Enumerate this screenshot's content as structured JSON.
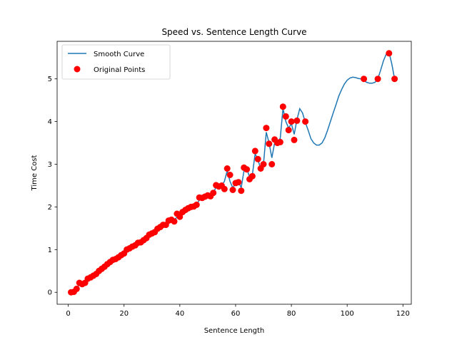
{
  "chart_data": {
    "type": "line",
    "title": "Speed vs. Sentence Length Curve",
    "xlabel": "Sentence Length",
    "ylabel": "Time Cost",
    "xlim": [
      -4,
      123
    ],
    "ylim": [
      -0.28,
      5.88
    ],
    "x_ticks": [
      0,
      20,
      40,
      60,
      80,
      100,
      120
    ],
    "y_ticks": [
      0,
      1,
      2,
      3,
      4,
      5
    ],
    "grid": false,
    "legend_position": "top-left",
    "series": [
      {
        "name": "Smooth Curve",
        "kind": "line",
        "color": "#1f77b4",
        "points": [
          [
            1,
            0.0
          ],
          [
            2,
            0.02
          ],
          [
            3,
            0.1
          ],
          [
            4,
            0.18
          ],
          [
            5,
            0.2
          ],
          [
            6,
            0.24
          ],
          [
            7,
            0.3
          ],
          [
            8,
            0.36
          ],
          [
            9,
            0.4
          ],
          [
            10,
            0.44
          ],
          [
            11,
            0.5
          ],
          [
            12,
            0.56
          ],
          [
            13,
            0.62
          ],
          [
            14,
            0.66
          ],
          [
            15,
            0.72
          ],
          [
            16,
            0.76
          ],
          [
            17,
            0.8
          ],
          [
            18,
            0.84
          ],
          [
            19,
            0.88
          ],
          [
            20,
            0.92
          ],
          [
            21,
            0.98
          ],
          [
            22,
            1.02
          ],
          [
            23,
            1.06
          ],
          [
            24,
            1.1
          ],
          [
            25,
            1.14
          ],
          [
            26,
            1.18
          ],
          [
            27,
            1.22
          ],
          [
            28,
            1.28
          ],
          [
            29,
            1.34
          ],
          [
            30,
            1.38
          ],
          [
            31,
            1.42
          ],
          [
            32,
            1.48
          ],
          [
            33,
            1.53
          ],
          [
            34,
            1.56
          ],
          [
            35,
            1.6
          ],
          [
            36,
            1.64
          ],
          [
            37,
            1.68
          ],
          [
            38,
            1.7
          ],
          [
            39,
            1.76
          ],
          [
            40,
            1.8
          ],
          [
            41,
            1.86
          ],
          [
            42,
            1.92
          ],
          [
            43,
            1.96
          ],
          [
            44,
            2.0
          ],
          [
            45,
            2.02
          ],
          [
            46,
            2.06
          ],
          [
            47,
            2.16
          ],
          [
            48,
            2.22
          ],
          [
            49,
            2.24
          ],
          [
            50,
            2.26
          ],
          [
            51,
            2.28
          ],
          [
            52,
            2.34
          ],
          [
            53,
            2.46
          ],
          [
            54,
            2.52
          ],
          [
            55,
            2.5
          ],
          [
            56,
            2.6
          ],
          [
            57,
            2.85
          ],
          [
            58,
            2.6
          ],
          [
            59,
            2.45
          ],
          [
            60,
            2.55
          ],
          [
            61,
            2.6
          ],
          [
            62,
            2.45
          ],
          [
            63,
            2.85
          ],
          [
            64,
            2.9
          ],
          [
            65,
            2.7
          ],
          [
            66,
            2.75
          ],
          [
            67,
            3.25
          ],
          [
            68,
            3.1
          ],
          [
            69,
            2.9
          ],
          [
            70,
            3.0
          ],
          [
            71,
            3.75
          ],
          [
            72,
            3.5
          ],
          [
            73,
            3.15
          ],
          [
            74,
            3.5
          ],
          [
            75,
            3.55
          ],
          [
            76,
            3.6
          ],
          [
            77,
            4.3
          ],
          [
            78,
            4.0
          ],
          [
            79,
            3.85
          ],
          [
            80,
            3.95
          ],
          [
            81,
            3.7
          ],
          [
            82,
            4.05
          ],
          [
            83,
            4.3
          ],
          [
            84,
            4.2
          ],
          [
            85,
            3.98
          ],
          [
            86,
            3.8
          ],
          [
            87,
            3.6
          ],
          [
            88,
            3.5
          ],
          [
            89,
            3.45
          ],
          [
            90,
            3.45
          ],
          [
            91,
            3.5
          ],
          [
            92,
            3.62
          ],
          [
            93,
            3.8
          ],
          [
            94,
            4.0
          ],
          [
            95,
            4.2
          ],
          [
            96,
            4.4
          ],
          [
            97,
            4.6
          ],
          [
            98,
            4.75
          ],
          [
            99,
            4.88
          ],
          [
            100,
            4.97
          ],
          [
            101,
            5.02
          ],
          [
            102,
            5.04
          ],
          [
            103,
            5.03
          ],
          [
            104,
            5.01
          ],
          [
            105,
            5.0
          ],
          [
            106,
            4.96
          ],
          [
            107,
            4.92
          ],
          [
            108,
            4.9
          ],
          [
            109,
            4.9
          ],
          [
            110,
            4.92
          ],
          [
            111,
            5.0
          ],
          [
            112,
            5.2
          ],
          [
            113,
            5.42
          ],
          [
            114,
            5.58
          ],
          [
            115,
            5.62
          ],
          [
            116,
            5.35
          ],
          [
            117,
            5.0
          ]
        ]
      },
      {
        "name": "Original Points",
        "kind": "scatter",
        "color": "#ff0000",
        "points": [
          [
            1,
            0.0
          ],
          [
            2,
            0.01
          ],
          [
            3,
            0.08
          ],
          [
            4,
            0.22
          ],
          [
            5,
            0.19
          ],
          [
            6,
            0.22
          ],
          [
            7,
            0.32
          ],
          [
            8,
            0.35
          ],
          [
            9,
            0.39
          ],
          [
            10,
            0.43
          ],
          [
            11,
            0.5
          ],
          [
            12,
            0.55
          ],
          [
            13,
            0.6
          ],
          [
            14,
            0.66
          ],
          [
            15,
            0.71
          ],
          [
            16,
            0.76
          ],
          [
            17,
            0.78
          ],
          [
            18,
            0.82
          ],
          [
            19,
            0.87
          ],
          [
            20,
            0.91
          ],
          [
            21,
            1.0
          ],
          [
            22,
            1.03
          ],
          [
            23,
            1.07
          ],
          [
            24,
            1.1
          ],
          [
            25,
            1.16
          ],
          [
            26,
            1.17
          ],
          [
            27,
            1.22
          ],
          [
            28,
            1.27
          ],
          [
            29,
            1.35
          ],
          [
            30,
            1.38
          ],
          [
            31,
            1.41
          ],
          [
            32,
            1.49
          ],
          [
            33,
            1.53
          ],
          [
            34,
            1.58
          ],
          [
            35,
            1.58
          ],
          [
            36,
            1.68
          ],
          [
            37,
            1.7
          ],
          [
            38,
            1.66
          ],
          [
            39,
            1.84
          ],
          [
            40,
            1.77
          ],
          [
            41,
            1.88
          ],
          [
            42,
            1.93
          ],
          [
            43,
            1.97
          ],
          [
            44,
            2.0
          ],
          [
            45,
            2.01
          ],
          [
            46,
            2.05
          ],
          [
            47,
            2.22
          ],
          [
            48,
            2.21
          ],
          [
            49,
            2.24
          ],
          [
            50,
            2.27
          ],
          [
            51,
            2.25
          ],
          [
            52,
            2.33
          ],
          [
            53,
            2.51
          ],
          [
            54,
            2.48
          ],
          [
            55,
            2.5
          ],
          [
            56,
            2.42
          ],
          [
            57,
            2.9
          ],
          [
            58,
            2.75
          ],
          [
            59,
            2.4
          ],
          [
            60,
            2.56
          ],
          [
            61,
            2.58
          ],
          [
            62,
            2.38
          ],
          [
            63,
            2.92
          ],
          [
            64,
            2.88
          ],
          [
            65,
            2.65
          ],
          [
            66,
            2.72
          ],
          [
            67,
            3.31
          ],
          [
            68,
            3.12
          ],
          [
            69,
            2.9
          ],
          [
            70,
            3.0
          ],
          [
            71,
            3.85
          ],
          [
            72,
            3.48
          ],
          [
            73,
            3.0
          ],
          [
            74,
            3.58
          ],
          [
            75,
            3.5
          ],
          [
            76,
            3.52
          ],
          [
            77,
            4.35
          ],
          [
            78,
            4.12
          ],
          [
            79,
            3.8
          ],
          [
            80,
            4.0
          ],
          [
            81,
            3.57
          ],
          [
            82,
            4.02
          ],
          [
            85,
            4.0
          ],
          [
            106,
            5.0
          ],
          [
            111,
            5.0
          ],
          [
            115,
            5.6
          ],
          [
            117,
            5.0
          ]
        ]
      }
    ]
  }
}
